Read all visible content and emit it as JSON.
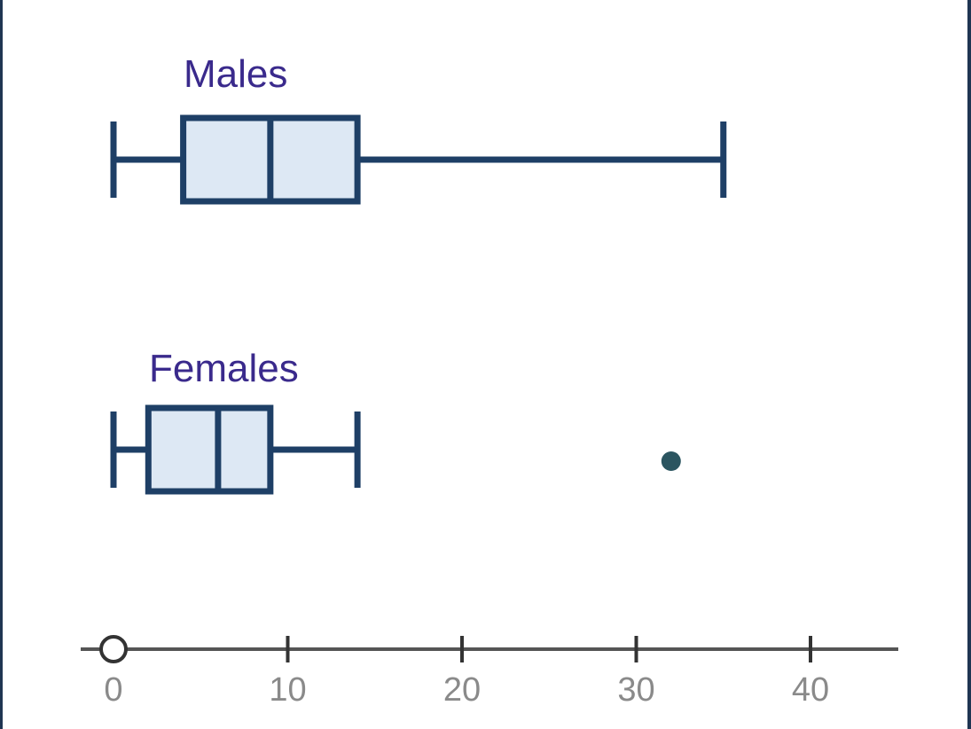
{
  "chart_data": {
    "type": "boxplot",
    "title": "",
    "xlabel": "",
    "ylabel": "",
    "xlim": [
      -2,
      45
    ],
    "x_ticks": [
      0,
      10,
      20,
      30,
      40
    ],
    "x_tick_labels": [
      "0",
      "10",
      "20",
      "30",
      "40"
    ],
    "origin_marker": "open-circle",
    "series": [
      {
        "name": "Males",
        "min": 0,
        "q1": 4,
        "median": 9,
        "q3": 14,
        "max": 35,
        "outliers": []
      },
      {
        "name": "Females",
        "min": 0,
        "q1": 2,
        "median": 6,
        "q3": 9,
        "max": 14,
        "outliers": [
          32
        ]
      }
    ],
    "colors": {
      "box_fill": "#dde8f4",
      "box_stroke": "#1e3f66",
      "label_text": "#3a2a8c",
      "outlier": "#2b5560",
      "axis": "#555555",
      "tick_text": "#8a8a8a",
      "frame": "#1f3552"
    }
  }
}
